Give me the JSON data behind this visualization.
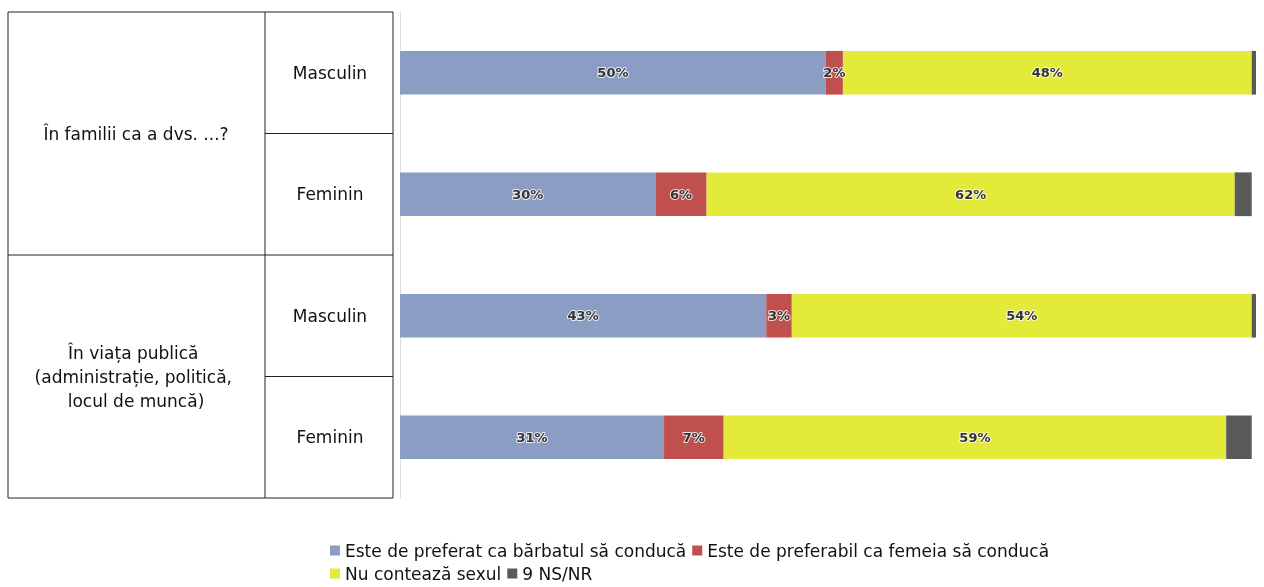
{
  "chart_data": {
    "type": "bar",
    "orientation": "horizontal",
    "stacked": true,
    "categories": [
      "Masculin",
      "Feminin",
      "Masculin",
      "Feminin"
    ],
    "annotations": [
      "În familii ca a dvs. ...?",
      "În viața publică (administrație, politică, locul de muncă)"
    ],
    "xlim": [
      0,
      100.5
    ],
    "series": [
      {
        "name": "Este de preferat ca bărbatul să conducă",
        "color": "#8b9dc3",
        "values": [
          50,
          30,
          43,
          31
        ],
        "value_labels": [
          "50%",
          "30%",
          "43%",
          "31%"
        ]
      },
      {
        "name": "Este de preferabil ca femeia să conducă",
        "color": "#c0504d",
        "values": [
          2,
          6,
          3,
          7
        ],
        "value_labels": [
          "2%",
          "6%",
          "3%",
          "7%"
        ]
      },
      {
        "name": "Nu contează sexul",
        "color": "#e3ea3a",
        "values": [
          48,
          62,
          54,
          59
        ],
        "value_labels": [
          "48%",
          "62%",
          "54%",
          "59%"
        ]
      },
      {
        "name": "9 NS/NR",
        "color": "#5a5a5a",
        "values": [
          0.5,
          2,
          0.5,
          3
        ],
        "value_labels": [
          null,
          null,
          null,
          null
        ]
      }
    ],
    "legend": "bottom",
    "grid": false
  }
}
